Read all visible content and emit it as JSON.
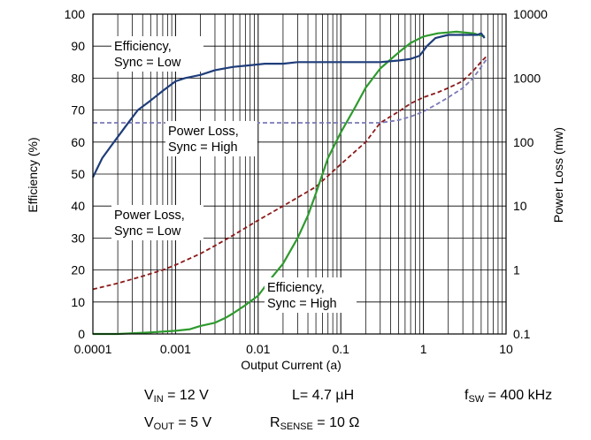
{
  "chart_data": {
    "type": "line",
    "xlabel": "Output Current (a)",
    "ylabel": "Efficiency (%)",
    "y2label": "Power Loss (mw)",
    "x_scale": "log",
    "y2_scale": "log",
    "xlim": [
      0.0001,
      10
    ],
    "ylim": [
      0,
      100
    ],
    "y2lim": [
      0.1,
      10000
    ],
    "grid": true,
    "x_ticks": [
      "0.0001",
      "0.001",
      "0.01",
      "0.1",
      "1",
      "10"
    ],
    "y_ticks": [
      "0",
      "10",
      "20",
      "30",
      "40",
      "50",
      "60",
      "70",
      "80",
      "90",
      "100"
    ],
    "y2_ticks": [
      "0.1",
      "1",
      "10",
      "100",
      "1000",
      "10000"
    ],
    "series": [
      {
        "name": "Efficiency, Sync = Low",
        "axis": "left",
        "color": "#1f3d7a",
        "style": "solid",
        "points": [
          [
            0.0001,
            49
          ],
          [
            0.00013,
            55
          ],
          [
            0.00018,
            60
          ],
          [
            0.00025,
            65
          ],
          [
            0.00035,
            70
          ],
          [
            0.0005,
            73
          ],
          [
            0.0007,
            76
          ],
          [
            0.001,
            79
          ],
          [
            0.0013,
            80
          ],
          [
            0.002,
            81
          ],
          [
            0.003,
            82.5
          ],
          [
            0.005,
            83.5
          ],
          [
            0.008,
            84
          ],
          [
            0.012,
            84.5
          ],
          [
            0.02,
            84.5
          ],
          [
            0.03,
            85
          ],
          [
            0.05,
            85
          ],
          [
            0.1,
            85
          ],
          [
            0.2,
            85
          ],
          [
            0.3,
            85
          ],
          [
            0.5,
            85.5
          ],
          [
            0.7,
            86
          ],
          [
            0.9,
            87
          ],
          [
            1.1,
            90
          ],
          [
            1.4,
            92.5
          ],
          [
            2,
            93.5
          ],
          [
            3,
            93.5
          ],
          [
            4.5,
            93.5
          ],
          [
            5,
            94
          ],
          [
            5.5,
            92.5
          ]
        ]
      },
      {
        "name": "Efficiency, Sync = High",
        "axis": "left",
        "color": "#2e9a2e",
        "style": "solid",
        "points": [
          [
            0.0001,
            0
          ],
          [
            0.0002,
            0
          ],
          [
            0.0005,
            0.5
          ],
          [
            0.001,
            1
          ],
          [
            0.0015,
            1.5
          ],
          [
            0.002,
            2.5
          ],
          [
            0.003,
            3.5
          ],
          [
            0.004,
            5
          ],
          [
            0.005,
            6.5
          ],
          [
            0.007,
            9
          ],
          [
            0.01,
            12
          ],
          [
            0.015,
            18
          ],
          [
            0.02,
            22
          ],
          [
            0.03,
            30
          ],
          [
            0.04,
            37
          ],
          [
            0.05,
            44
          ],
          [
            0.07,
            55
          ],
          [
            0.1,
            63
          ],
          [
            0.15,
            71
          ],
          [
            0.2,
            77
          ],
          [
            0.3,
            83
          ],
          [
            0.5,
            88
          ],
          [
            0.7,
            91
          ],
          [
            1,
            93
          ],
          [
            1.5,
            94
          ],
          [
            2.5,
            94.5
          ],
          [
            4,
            94
          ],
          [
            5.5,
            93
          ]
        ]
      },
      {
        "name": "Power Loss, Sync = Low",
        "axis": "right",
        "color": "#8b1a1a",
        "style": "dashed",
        "points": [
          [
            0.0001,
            0.5
          ],
          [
            0.0002,
            0.62
          ],
          [
            0.0004,
            0.8
          ],
          [
            0.0007,
            1.0
          ],
          [
            0.001,
            1.2
          ],
          [
            0.002,
            1.8
          ],
          [
            0.003,
            2.4
          ],
          [
            0.005,
            3.5
          ],
          [
            0.01,
            6
          ],
          [
            0.02,
            10
          ],
          [
            0.05,
            20
          ],
          [
            0.1,
            45
          ],
          [
            0.2,
            100
          ],
          [
            0.3,
            200
          ],
          [
            0.5,
            300
          ],
          [
            0.7,
            400
          ],
          [
            1,
            500
          ],
          [
            1.5,
            600
          ],
          [
            2,
            700
          ],
          [
            3,
            900
          ],
          [
            4,
            1300
          ],
          [
            5,
            1800
          ],
          [
            6,
            2300
          ]
        ]
      },
      {
        "name": "Power Loss, Sync = High",
        "axis": "right",
        "color": "#7b79b6",
        "style": "dashed",
        "points": [
          [
            0.0001,
            200
          ],
          [
            0.001,
            200
          ],
          [
            0.01,
            200
          ],
          [
            0.05,
            200
          ],
          [
            0.1,
            200
          ],
          [
            0.3,
            200
          ],
          [
            0.5,
            220
          ],
          [
            0.7,
            250
          ],
          [
            1,
            300
          ],
          [
            1.5,
            400
          ],
          [
            2,
            500
          ],
          [
            3,
            700
          ],
          [
            4,
            1000
          ],
          [
            5,
            1500
          ],
          [
            6,
            2100
          ]
        ]
      }
    ],
    "annotations": [
      {
        "lines": [
          "Efficiency,",
          "Sync = Low"
        ]
      },
      {
        "lines": [
          "Power Loss,",
          "Sync = High"
        ]
      },
      {
        "lines": [
          "Power Loss,",
          "Sync = Low"
        ]
      },
      {
        "lines": [
          "Efficiency,",
          "Sync = High"
        ]
      }
    ]
  },
  "conditions": {
    "vin": {
      "sym": "V",
      "sub": "IN",
      "val": " = 12 V"
    },
    "vout": {
      "sym": "V",
      "sub": "OUT",
      "val": " = 5 V"
    },
    "l": {
      "text": "L= 4.7 µH"
    },
    "rsense": {
      "sym": "R",
      "sub": "SENSE",
      "val": " = 10 Ω"
    },
    "fsw": {
      "sym": "f",
      "sub": "SW",
      "val": " = 400 kHz"
    }
  }
}
